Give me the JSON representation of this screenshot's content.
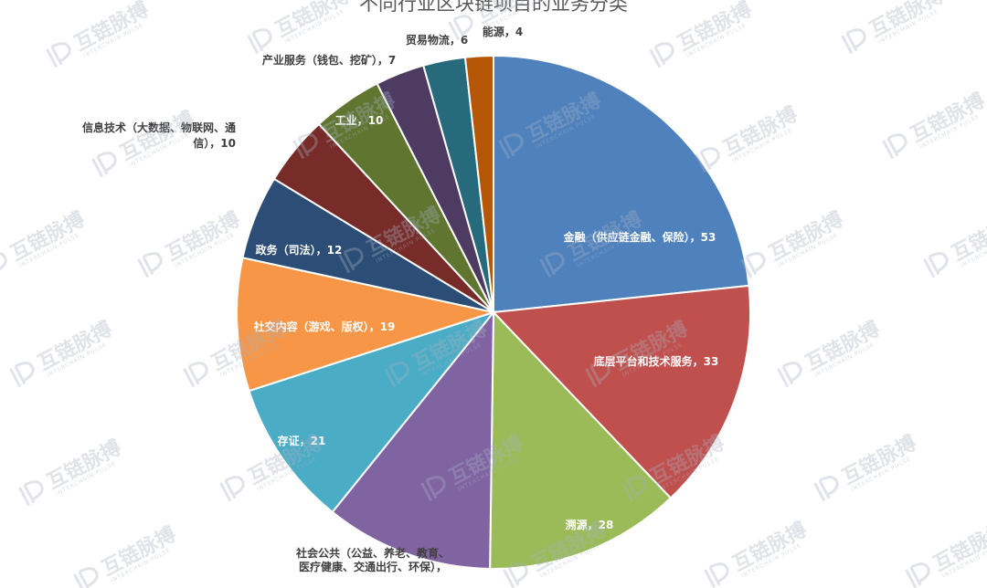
{
  "title": "不同行业区块链项目的业务分类",
  "watermark": {
    "text": "互链脉搏",
    "subtext": "INTERCHAIN PULSE"
  },
  "chart_data": {
    "type": "pie",
    "start_angle_deg": 0,
    "direction": "clockwise",
    "slices": [
      {
        "label": "金融（供应链金融、保险）",
        "value": 53,
        "color": "#4f81bd",
        "label_text": "金融（供应链金融、保险），53"
      },
      {
        "label": "底层平台和技术服务",
        "value": 33,
        "color": "#c0504d",
        "label_text": "底层平台和技术服务，33"
      },
      {
        "label": "溯源",
        "value": 28,
        "color": "#9bbb59",
        "label_text": "溯源，28"
      },
      {
        "label": "社会公共（公益、养老、教育、医疗健康、交通出行、环保）",
        "value": 24,
        "color": "#8064a2",
        "label_lines": [
          "社会公共（公益、养老、教育、",
          "医疗健康、交通出行、环保），"
        ]
      },
      {
        "label": "存证",
        "value": 21,
        "color": "#4bacc6",
        "label_text": "存证，21"
      },
      {
        "label": "社交内容（游戏、版权）",
        "value": 19,
        "color": "#f79646",
        "label_text": "社交内容（游戏、版权），19"
      },
      {
        "label": "政务（司法）",
        "value": 12,
        "color": "#2c4d75",
        "label_text": "政务（司法），12"
      },
      {
        "label": "信息技术（大数据、物联网、通信）",
        "value": 10,
        "color": "#772c2a",
        "label_lines": [
          "信息技术（大数据、物联网、通",
          "信），10"
        ]
      },
      {
        "label": "工业",
        "value": 10,
        "color": "#5f7530",
        "label_text": "工业，10"
      },
      {
        "label": "产业服务（钱包、挖矿）",
        "value": 7,
        "color": "#4d3b62",
        "label_text": "产业服务（钱包、挖矿），7"
      },
      {
        "label": "贸易物流",
        "value": 6,
        "color": "#276a7c",
        "label_text": "贸易物流，6"
      },
      {
        "label": "能源",
        "value": 4,
        "color": "#b65708",
        "label_text": "能源，4"
      }
    ]
  }
}
